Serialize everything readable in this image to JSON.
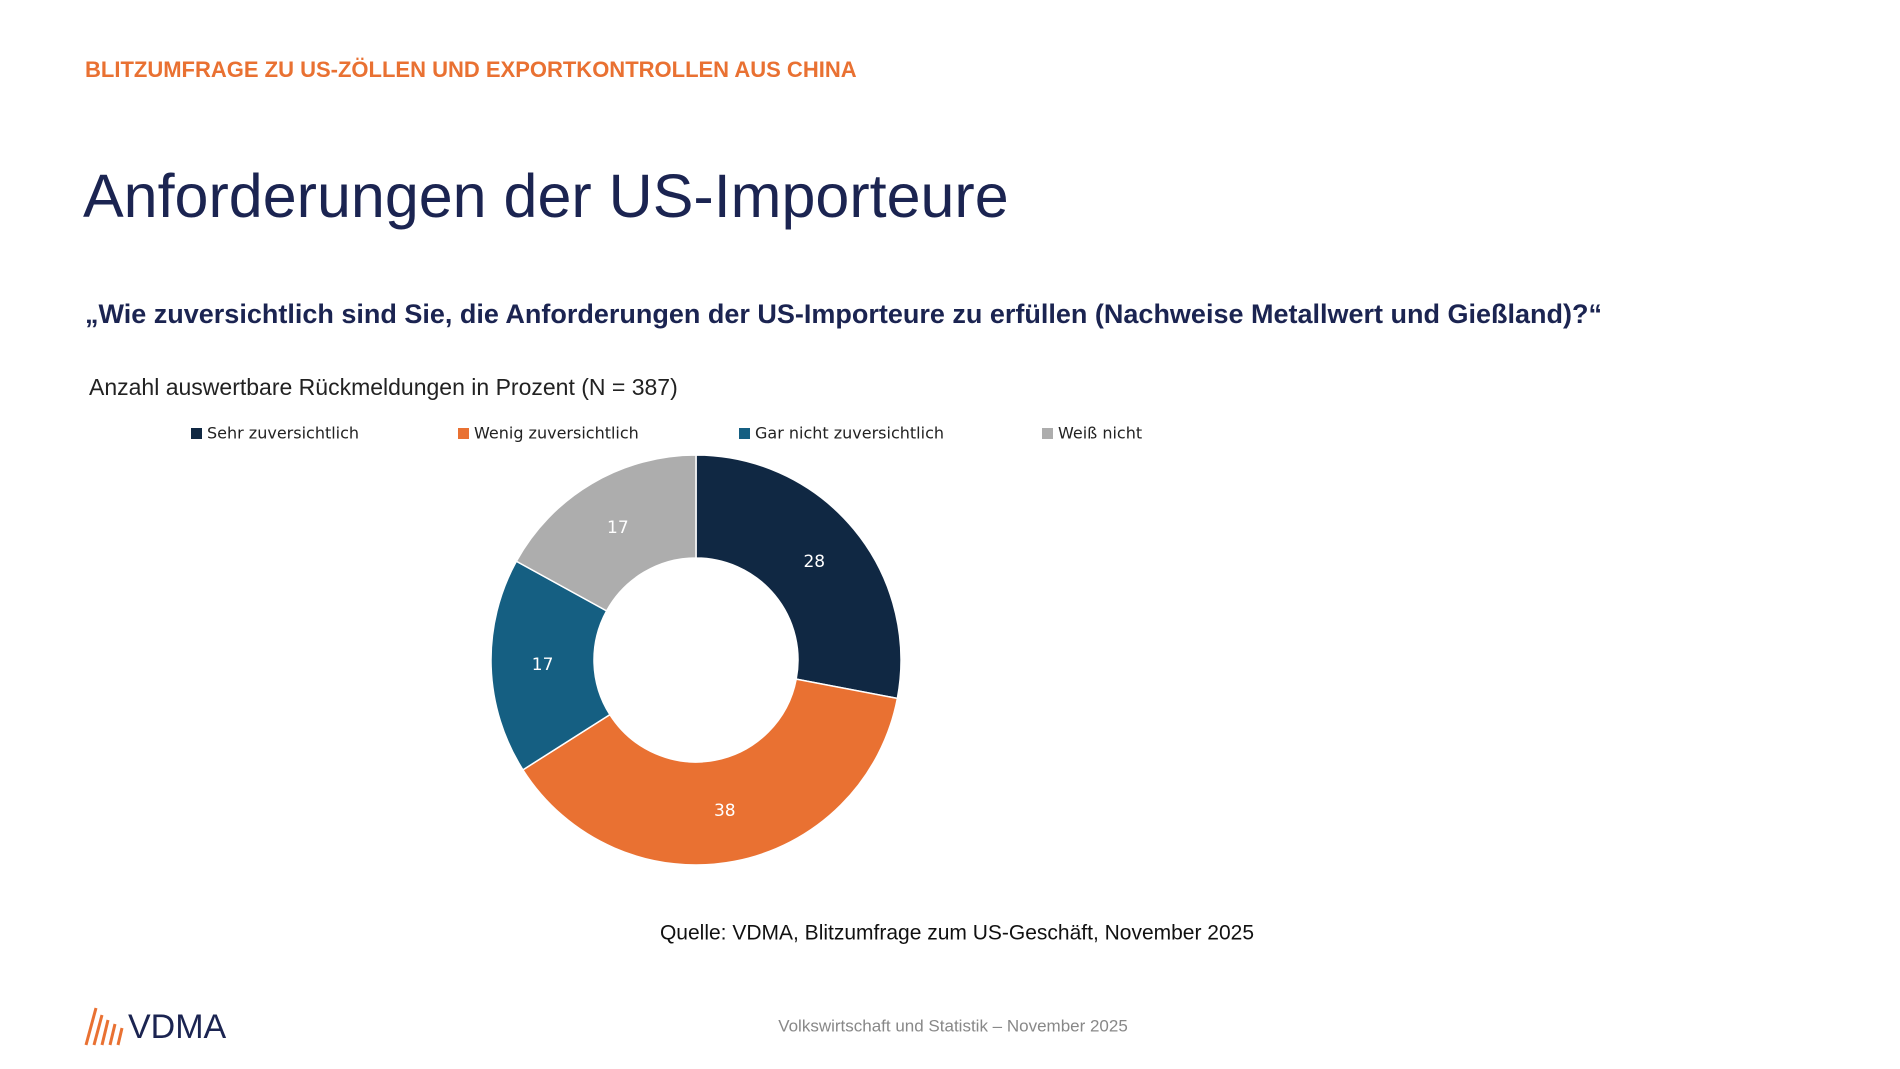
{
  "header": {
    "kicker": "BLITZUMFRAGE ZU US-ZÖLLEN UND EXPORTKONTROLLEN AUS CHINA",
    "title": "Anforderungen der US-Importeure",
    "question": "„Wie zuversichtlich sind Sie, die Anforderungen der US-Importeure zu erfüllen (Nachweise Metallwert und Gießland)?“"
  },
  "chart_data": {
    "type": "donut",
    "subtitle": "Anzahl auswertbare Rückmeldungen in Prozent (N = 387)",
    "categories": [
      "Sehr zuversichtlich",
      "Wenig zuversichtlich",
      "Gar nicht zuversichtlich",
      "Weiß nicht"
    ],
    "values": [
      28,
      38,
      17,
      17
    ],
    "colors": [
      "#102843",
      "#e97132",
      "#155f82",
      "#adadad"
    ],
    "legend": "top"
  },
  "source": "Quelle: VDMA, Blitzumfrage zum US-Geschäft, November 2025",
  "footer": {
    "text": "Volkswirtschaft und Statistik – November 2025",
    "logo": "VDMA"
  }
}
